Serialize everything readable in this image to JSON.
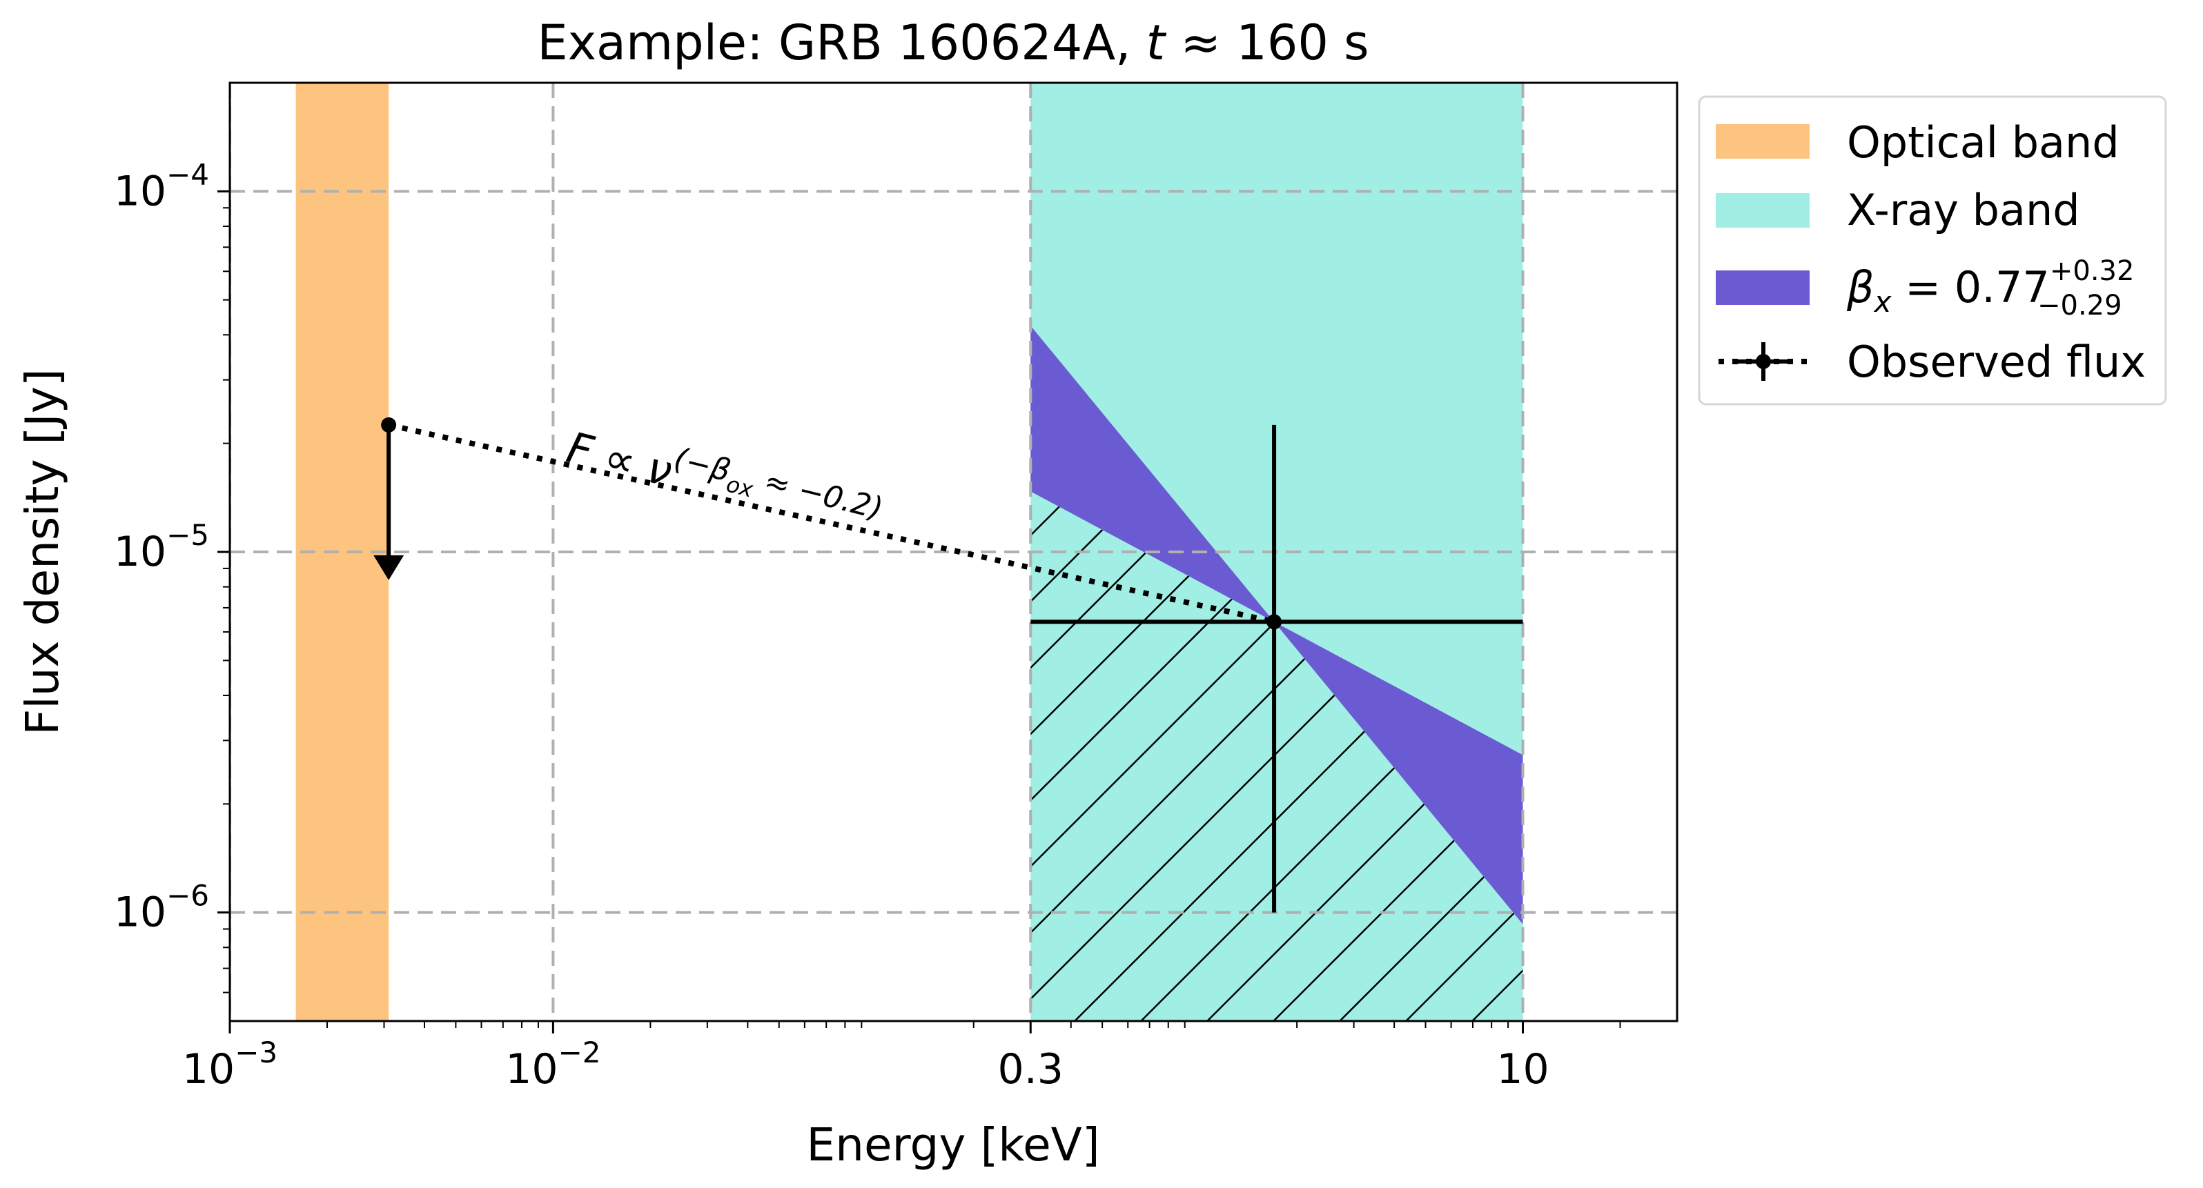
{
  "chart_data": {
    "type": "line",
    "title_prefix": "Example: GRB 160624A, ",
    "title_t": "t",
    "title_suffix": " ≈ 160 s",
    "xlabel": "Energy [keV]",
    "ylabel": "Flux density [Jy]",
    "xscale": "log",
    "yscale": "log",
    "xlim": [
      0.001,
      30
    ],
    "ylim": [
      5e-07,
      0.0002
    ],
    "grid": true,
    "legend_position": "outside-right",
    "x_ticks": [
      {
        "value": 0.001,
        "base": "10",
        "exp": "−3",
        "text": ""
      },
      {
        "value": 0.01,
        "base": "10",
        "exp": "−2",
        "text": ""
      },
      {
        "value": 0.3,
        "base": "",
        "exp": "",
        "text": "0.3"
      },
      {
        "value": 10,
        "base": "",
        "exp": "",
        "text": "10"
      }
    ],
    "y_ticks": [
      {
        "value": 0.0001,
        "base": "10",
        "exp": "−4"
      },
      {
        "value": 1e-05,
        "base": "10",
        "exp": "−5"
      },
      {
        "value": 1e-06,
        "base": "10",
        "exp": "−6"
      }
    ],
    "bands": [
      {
        "name": "Optical band",
        "x_range": [
          0.0016,
          0.0031
        ],
        "color": "#FDC47F"
      },
      {
        "name": "X-ray band",
        "x_range": [
          0.3,
          10
        ],
        "color": "#A1EEE5"
      }
    ],
    "spectral_bowtie": {
      "legend_base": "β",
      "legend_sub": "x",
      "legend_value": " = 0.77",
      "legend_sup": "+0.32",
      "legend_subval": "−0.29",
      "beta": 0.77,
      "beta_plus": 0.32,
      "beta_minus": 0.29,
      "pivot": {
        "x": 1.7,
        "y": 6.4e-06
      },
      "x_range": [
        0.3,
        10
      ],
      "color": "#6B5BD2"
    },
    "observed_flux": {
      "name": "Observed flux",
      "xray_point": {
        "x": 1.7,
        "y": 6.4e-06,
        "xerr": [
          0.3,
          10
        ],
        "yerr": [
          1e-06,
          2.25e-05
        ]
      },
      "optical_upper_limit": {
        "x": 0.0031,
        "y": 2.25e-05,
        "arrow_to": 8.5e-06
      },
      "connector_style": "dotted"
    },
    "annotation": {
      "main": "F ∝ ν",
      "exponent": "(−β",
      "exp_sub": "ox",
      "exp_tail": " ≈ −0.2)"
    },
    "colors": {
      "grid": "#b0b0b0",
      "hatch": "#000000",
      "text": "#000000"
    }
  }
}
